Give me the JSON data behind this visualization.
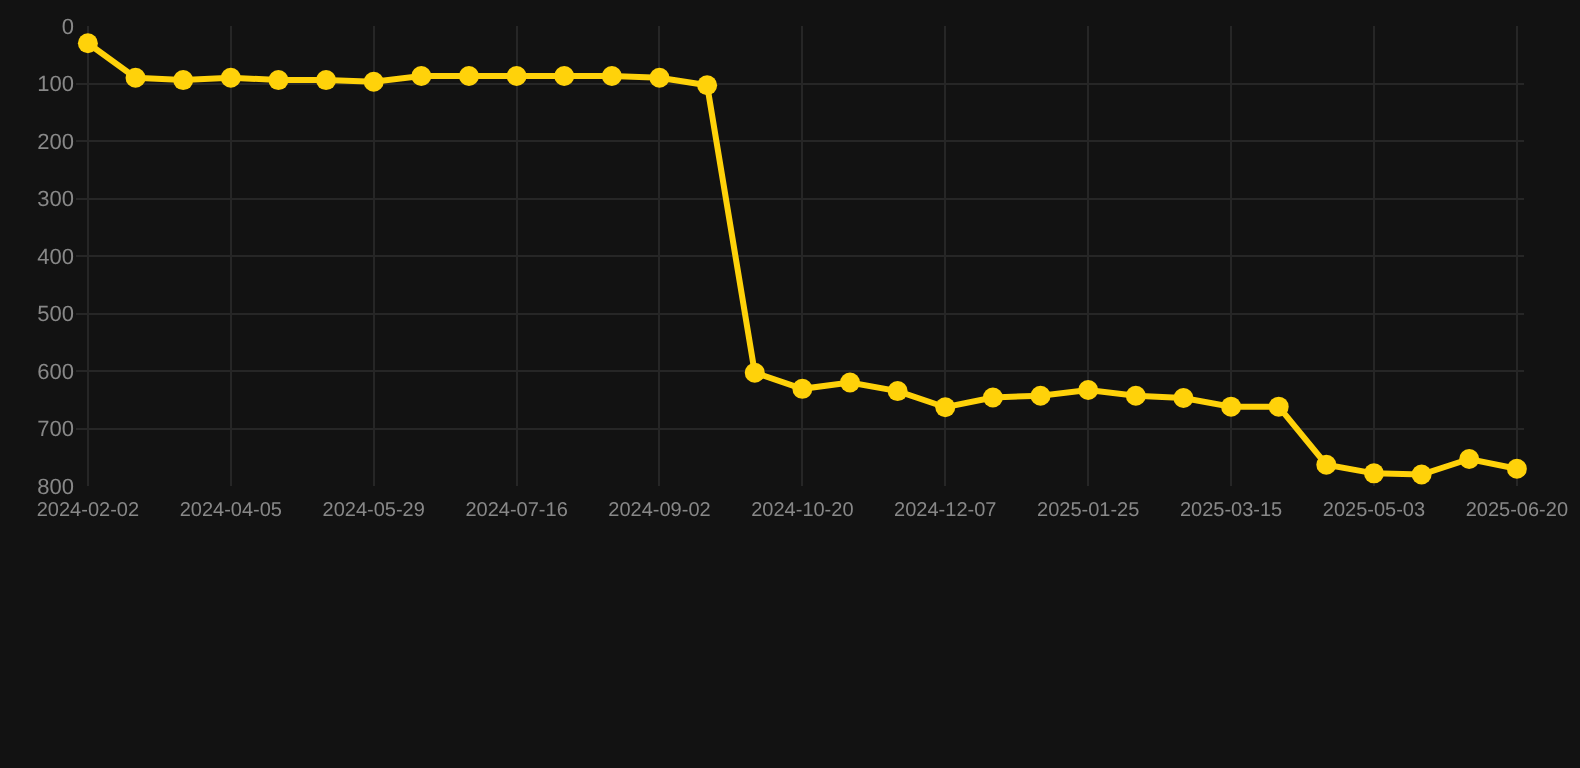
{
  "chart_data": {
    "type": "line",
    "categories": [
      "2024-02-02",
      null,
      null,
      "2024-04-05",
      null,
      null,
      "2024-05-29",
      null,
      null,
      "2024-07-16",
      null,
      null,
      "2024-09-02",
      null,
      null,
      "2024-10-20",
      null,
      null,
      "2024-12-07",
      null,
      null,
      "2025-01-25",
      null,
      null,
      "2025-03-15",
      null,
      null,
      "2025-05-03",
      null,
      null,
      "2025-06-20"
    ],
    "series": [
      {
        "color": "#ffd20a",
        "values": [
          30,
          90,
          94,
          90,
          94,
          94,
          97,
          87,
          87,
          87,
          87,
          87,
          90,
          103,
          603,
          631,
          620,
          635,
          663,
          646,
          643,
          633,
          643,
          647,
          662,
          662,
          763,
          778,
          780,
          753,
          770
        ]
      }
    ],
    "ylim": [
      800,
      0
    ],
    "yticks": [
      0,
      100,
      200,
      300,
      400,
      500,
      600,
      700,
      800
    ],
    "grid": true,
    "marker": "circle",
    "line_style": "solid",
    "legend": false
  }
}
